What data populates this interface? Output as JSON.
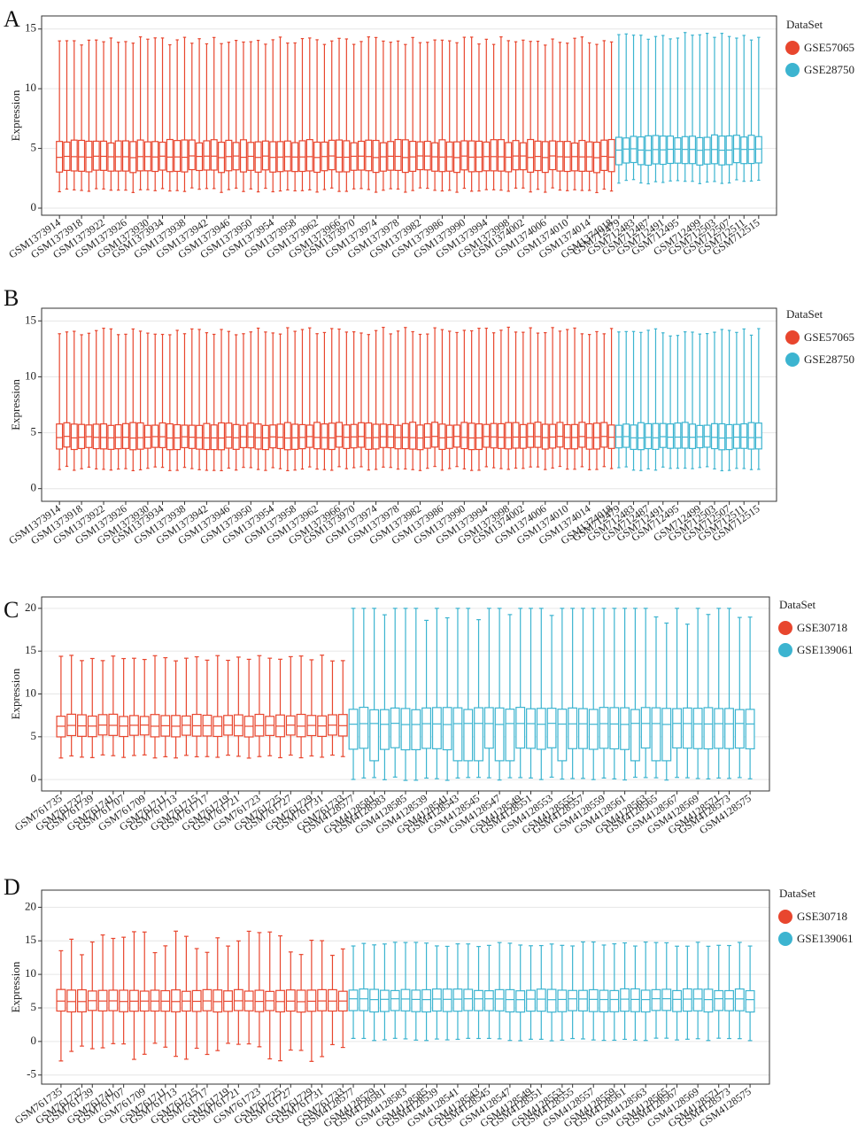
{
  "figure": {
    "legend_title": "DataSet",
    "colors": {
      "series_a": "#e8462e",
      "series_b": "#3cb4d0"
    }
  },
  "chart_data": [
    {
      "type": "boxplot",
      "panel_label": "A",
      "ylabel": "Expression",
      "ylim": [
        0,
        15.5
      ],
      "yticks": [
        0,
        5,
        10,
        15
      ],
      "legend": [
        "GSE57065",
        "GSE28750"
      ],
      "groups": [
        {
          "name": "GSE57065",
          "count": 76,
          "box": {
            "low": 1.5,
            "q1": 3.1,
            "median": 4.3,
            "q3": 5.6,
            "high": 14.0
          },
          "tick_labels": [
            "GSM1373914",
            "GSM1373918",
            "GSM1373922",
            "GSM1373926",
            "GSM1373930",
            "GSM1373934",
            "GSM1373938",
            "GSM1373942",
            "GSM1373946",
            "GSM1373950",
            "GSM1373954",
            "GSM1373958",
            "GSM1373962",
            "GSM1373966",
            "GSM1373970",
            "GSM1373974",
            "GSM1373978",
            "GSM1373982",
            "GSM1373986",
            "GSM1373990",
            "GSM1373994",
            "GSM1373998",
            "GSM1374002",
            "GSM1374006",
            "GSM1374010",
            "GSM1374014",
            "GSM1374018"
          ]
        },
        {
          "name": "GSE28750",
          "count": 20,
          "box": {
            "low": 2.2,
            "q1": 3.7,
            "median": 4.9,
            "q3": 6.0,
            "high": 14.4
          },
          "tick_labels": [
            "GSM712479",
            "GSM712483",
            "GSM712487",
            "GSM712491",
            "GSM712495",
            "GSM712499",
            "GSM712503",
            "GSM712507",
            "GSM712511",
            "GSM712515"
          ]
        }
      ]
    },
    {
      "type": "boxplot",
      "panel_label": "B",
      "ylabel": "Expression",
      "ylim": [
        -0.5,
        15.5
      ],
      "yticks": [
        0,
        5,
        10,
        15
      ],
      "legend": [
        "GSE57065",
        "GSE28750"
      ],
      "groups": [
        {
          "name": "GSE57065",
          "count": 76,
          "box": {
            "low": 1.8,
            "q1": 3.6,
            "median": 4.6,
            "q3": 5.8,
            "high": 14.1
          },
          "tick_labels": [
            "GSM1373914",
            "GSM1373918",
            "GSM1373922",
            "GSM1373926",
            "GSM1373930",
            "GSM1373934",
            "GSM1373938",
            "GSM1373942",
            "GSM1373946",
            "GSM1373950",
            "GSM1373954",
            "GSM1373958",
            "GSM1373962",
            "GSM1373966",
            "GSM1373970",
            "GSM1373974",
            "GSM1373978",
            "GSM1373982",
            "GSM1373986",
            "GSM1373990",
            "GSM1373994",
            "GSM1373998",
            "GSM1374002",
            "GSM1374006",
            "GSM1374010",
            "GSM1374014",
            "GSM1374018"
          ]
        },
        {
          "name": "GSE28750",
          "count": 20,
          "box": {
            "low": 1.8,
            "q1": 3.6,
            "median": 4.6,
            "q3": 5.8,
            "high": 14.0
          },
          "tick_labels": [
            "GSM712479",
            "GSM712483",
            "GSM712487",
            "GSM712491",
            "GSM712495",
            "GSM712499",
            "GSM712503",
            "GSM712507",
            "GSM712511",
            "GSM712515"
          ]
        }
      ]
    },
    {
      "type": "boxplot",
      "panel_label": "C",
      "ylabel": "Expression",
      "ylim": [
        -0.5,
        20.5
      ],
      "yticks": [
        0,
        5,
        10,
        15,
        20
      ],
      "legend": [
        "GSE30718",
        "GSE139061"
      ],
      "groups": [
        {
          "name": "GSE30718",
          "count": 28,
          "box": {
            "low": 2.7,
            "q1": 5.1,
            "median": 6.3,
            "q3": 7.5,
            "high": 14.2
          },
          "tick_labels": [
            "GSM761735",
            "GSM761737",
            "GSM761739",
            "GSM761741",
            "GSM761707",
            "GSM761709",
            "GSM761711",
            "GSM761713",
            "GSM761715",
            "GSM761717",
            "GSM761719",
            "GSM761721",
            "GSM761723",
            "GSM761725",
            "GSM761727",
            "GSM761729",
            "GSM761731",
            "GSM761733"
          ]
        },
        {
          "name": "GSE139061",
          "count": 39,
          "box": {
            "low": 0.1,
            "q1": 3.6,
            "median": 6.5,
            "q3": 8.3,
            "high": 20.0
          },
          "tick_labels": [
            "GSM4128577",
            "GSM4128581",
            "GSM4128583",
            "GSM4128585",
            "GSM4128539",
            "GSM4128541",
            "GSM4128543",
            "GSM4128545",
            "GSM4128547",
            "GSM4128549",
            "GSM4128551",
            "GSM4128553",
            "GSM4128555",
            "GSM4128557",
            "GSM4128559",
            "GSM4128561",
            "GSM4128563",
            "GSM4128565",
            "GSM4128567",
            "GSM4128569",
            "GSM4128571",
            "GSM4128573",
            "GSM4128575"
          ]
        }
      ]
    },
    {
      "type": "boxplot",
      "panel_label": "D",
      "ylabel": "Expression",
      "ylim": [
        -5.3,
        21.5
      ],
      "yticks": [
        -5,
        0,
        5,
        10,
        15,
        20
      ],
      "legend": [
        "GSE30718",
        "GSE139061"
      ],
      "groups": [
        {
          "name": "GSE30718",
          "count": 28,
          "box": {
            "low": -1.5,
            "q1": 4.5,
            "median": 6.0,
            "q3": 7.6,
            "high": 14.8
          },
          "tick_labels": [
            "GSM761735",
            "GSM761737",
            "GSM761739",
            "GSM761741",
            "GSM761707",
            "GSM761709",
            "GSM761711",
            "GSM761713",
            "GSM761715",
            "GSM761717",
            "GSM761719",
            "GSM761721",
            "GSM761723",
            "GSM761725",
            "GSM761727",
            "GSM761729",
            "GSM761731",
            "GSM761733"
          ]
        },
        {
          "name": "GSE139061",
          "count": 39,
          "box": {
            "low": 0.3,
            "q1": 4.5,
            "median": 6.3,
            "q3": 7.7,
            "high": 14.5
          },
          "tick_labels": [
            "GSM4128577",
            "GSM4128579",
            "GSM4128581",
            "GSM4128583",
            "GSM4128585",
            "GSM4128539",
            "GSM4128541",
            "GSM4128543",
            "GSM4128545",
            "GSM4128547",
            "GSM4128549",
            "GSM4128551",
            "GSM4128553",
            "GSM4128555",
            "GSM4128557",
            "GSM4128559",
            "GSM4128561",
            "GSM4128563",
            "GSM4128565",
            "GSM4128567",
            "GSM4128569",
            "GSM4128571",
            "GSM4128573",
            "GSM4128575"
          ]
        }
      ]
    }
  ]
}
